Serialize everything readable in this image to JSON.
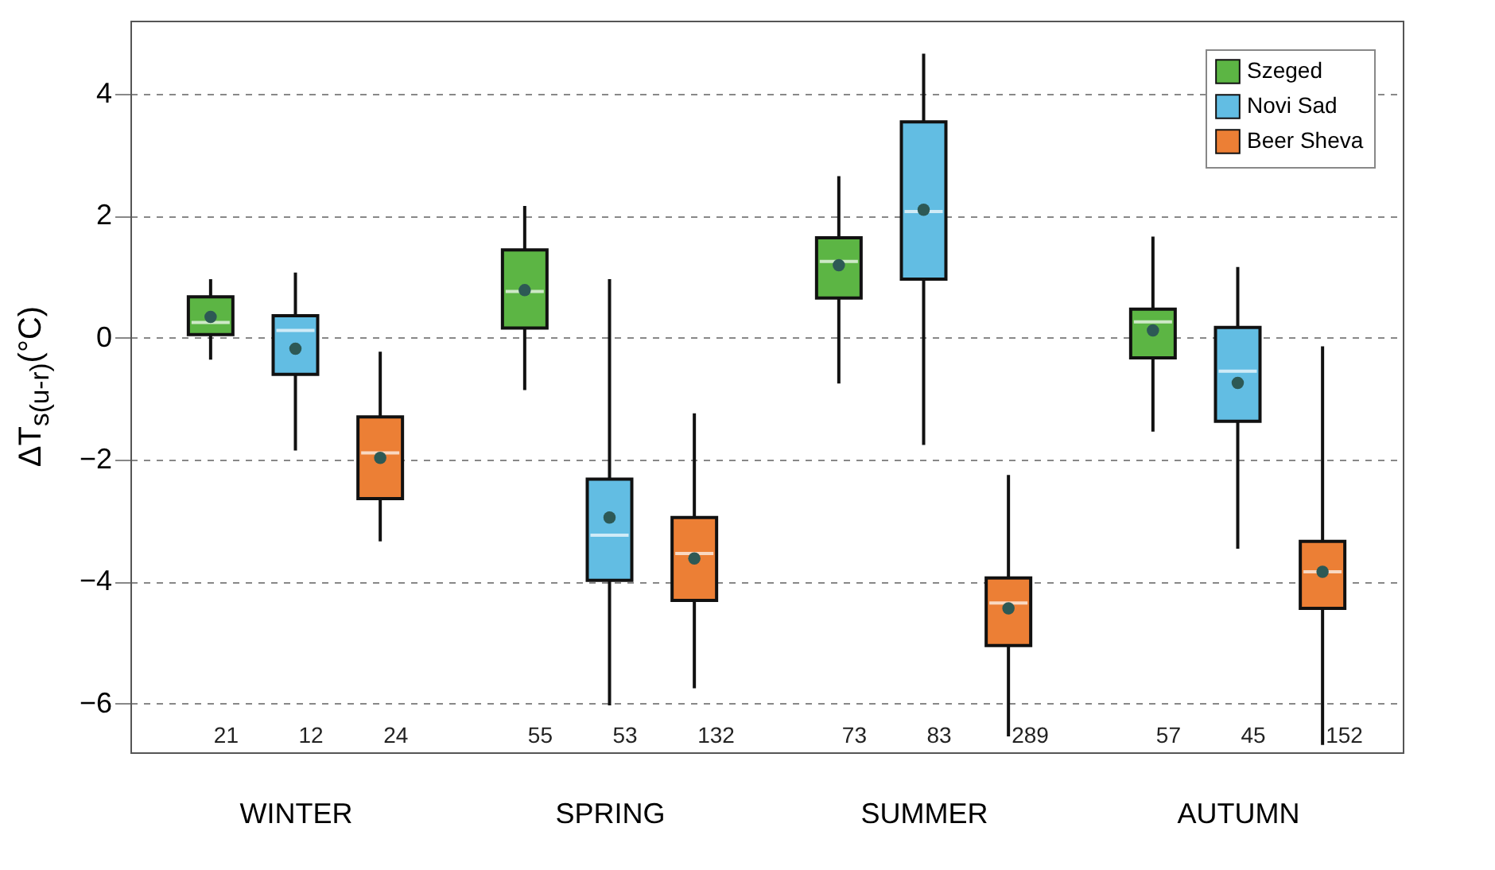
{
  "chart_data": {
    "type": "box",
    "ylabel": "ΔT$_{s(u-r)}$(°C)",
    "categories": [
      "WINTER",
      "SPRING",
      "SUMMER",
      "AUTUMN"
    ],
    "ylim": [
      -6.8,
      5.2
    ],
    "yticks": [
      -6,
      -4,
      -2,
      0,
      2,
      4
    ],
    "grid": "y",
    "legend": "top right",
    "series": [
      {
        "name": "Szeged",
        "color": "#5cb544",
        "value_labels": [
          "21",
          "55",
          "73",
          "57"
        ],
        "boxes": [
          {
            "low": -0.36,
            "q1": 0.05,
            "median": 0.25,
            "q3": 0.67,
            "high": 0.96,
            "mean": 0.34
          },
          {
            "low": -0.86,
            "q1": 0.16,
            "median": 0.76,
            "q3": 1.44,
            "high": 2.16,
            "mean": 0.78
          },
          {
            "low": -0.75,
            "q1": 0.65,
            "median": 1.25,
            "q3": 1.64,
            "high": 2.65,
            "mean": 1.19
          },
          {
            "low": -1.54,
            "q1": -0.33,
            "median": 0.26,
            "q3": 0.47,
            "high": 1.66,
            "mean": 0.12
          }
        ]
      },
      {
        "name": "Novi Sad",
        "color": "#62bde3",
        "value_labels": [
          "12",
          "53",
          "83",
          "45"
        ],
        "boxes": [
          {
            "low": -1.85,
            "q1": -0.6,
            "median": 0.12,
            "q3": 0.36,
            "high": 1.07,
            "mean": -0.18
          },
          {
            "low": -6.03,
            "q1": -3.98,
            "median": -3.24,
            "q3": -2.32,
            "high": 0.96,
            "mean": -2.95
          },
          {
            "low": -1.76,
            "q1": 0.96,
            "median": 2.07,
            "q3": 3.54,
            "high": 4.66,
            "mean": 2.1
          },
          {
            "low": -3.46,
            "q1": -1.37,
            "median": -0.55,
            "q3": 0.17,
            "high": 1.16,
            "mean": -0.74
          }
        ]
      },
      {
        "name": "Beer Sheva",
        "color": "#ec7f35",
        "value_labels": [
          "24",
          "132",
          "289",
          "152"
        ],
        "boxes": [
          {
            "low": -3.34,
            "q1": -2.64,
            "median": -1.89,
            "q3": -1.3,
            "high": -0.23,
            "mean": -1.97
          },
          {
            "low": -5.75,
            "q1": -4.31,
            "median": -3.54,
            "q3": -2.95,
            "high": -1.24,
            "mean": -3.62
          },
          {
            "low": -6.54,
            "q1": -5.05,
            "median": -4.35,
            "q3": -3.94,
            "high": -2.25,
            "mean": -4.44
          },
          {
            "low": -6.68,
            "q1": -4.44,
            "median": -3.84,
            "q3": -3.34,
            "high": -0.14,
            "mean": -3.84
          }
        ]
      }
    ]
  }
}
